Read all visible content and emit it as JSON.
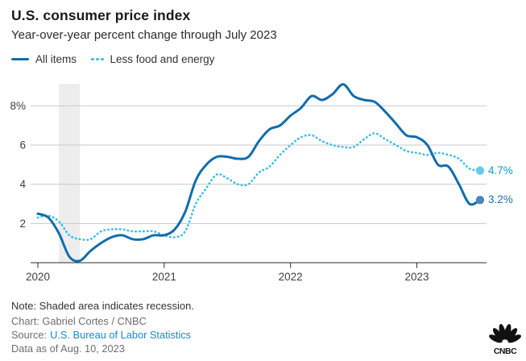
{
  "chart_data": {
    "type": "line",
    "title": "U.S. consumer price index",
    "subtitle": "Year-over-year percent change through July 2023",
    "x_start": "2020-01",
    "x_end": "2023-07",
    "frequency": "monthly",
    "x_tick_labels": [
      "2020",
      "2021",
      "2022",
      "2023"
    ],
    "x_tick_month_indices": [
      0,
      12,
      24,
      36
    ],
    "y_tick_labels": [
      "8%",
      "6",
      "4",
      "2"
    ],
    "y_grid_values": [
      8,
      6,
      4,
      2
    ],
    "ylim": [
      0,
      9.3
    ],
    "grid": true,
    "legend_position": "top-left",
    "recession_band": {
      "from": "2020-03",
      "to": "2020-05",
      "from_month_index": 2,
      "to_month_index": 4,
      "color": "#EDEDED"
    },
    "series": [
      {
        "name": "All items",
        "style": "solid",
        "color": "#116CAD",
        "dot_color": "#4A85BB",
        "label_color": "#1B6FAF",
        "end_label": "3.2%",
        "values": [
          2.5,
          2.3,
          1.5,
          0.3,
          0.1,
          0.6,
          1.0,
          1.3,
          1.4,
          1.2,
          1.2,
          1.4,
          1.4,
          1.7,
          2.6,
          4.2,
          5.0,
          5.4,
          5.4,
          5.3,
          5.4,
          6.2,
          6.8,
          7.0,
          7.5,
          7.9,
          8.5,
          8.3,
          8.6,
          9.1,
          8.5,
          8.3,
          8.2,
          7.7,
          7.1,
          6.5,
          6.4,
          6.0,
          5.0,
          4.9,
          4.0,
          3.0,
          3.2
        ]
      },
      {
        "name": "Less food and energy",
        "style": "dotted",
        "color": "#38BFE8",
        "dot_color": "#63CBEE",
        "label_color": "#0A9ED7",
        "end_label": "4.7%",
        "values": [
          2.3,
          2.4,
          2.1,
          1.4,
          1.2,
          1.2,
          1.6,
          1.7,
          1.7,
          1.6,
          1.6,
          1.6,
          1.4,
          1.3,
          1.6,
          3.0,
          3.8,
          4.5,
          4.3,
          4.0,
          4.0,
          4.6,
          4.9,
          5.5,
          6.0,
          6.4,
          6.5,
          6.2,
          6.0,
          5.9,
          5.9,
          6.3,
          6.6,
          6.3,
          6.0,
          5.7,
          5.6,
          5.5,
          5.6,
          5.5,
          5.3,
          4.8,
          4.7
        ]
      }
    ],
    "axis_color": "#2B2B2B",
    "gridline_color": "#C9C9C9",
    "tick_label_color": "#404040"
  },
  "footer": {
    "note": "Note: Shaded area indicates recession.",
    "chart_credit": "Chart: Gabriel Cortes / CNBC",
    "source_label": "Source:",
    "source_link": "U.S. Bureau of Labor Statistics",
    "data_as_of": "Data as of Aug. 10, 2023"
  },
  "logo": {
    "text": "CNBC"
  }
}
